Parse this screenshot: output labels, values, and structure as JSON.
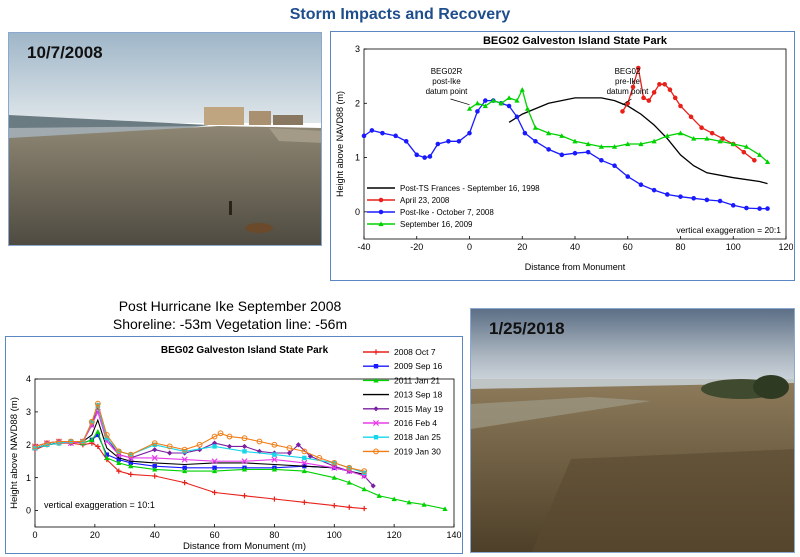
{
  "title": "Storm Impacts and Recovery",
  "photo_top": {
    "date_label": "10/7/2008"
  },
  "photo_bottom": {
    "date_label": "1/25/2018"
  },
  "caption": {
    "line1": "Post Hurricane Ike September 2008",
    "line2": "Shoreline: -53m Vegetation line: -56m"
  },
  "chart_data": [
    {
      "type": "line",
      "title": "BEG02 Galveston Island State Park",
      "xlabel": "Distance from Monument",
      "ylabel": "Height above NAVD88 (m)",
      "xlim": [
        -40,
        120
      ],
      "ylim": [
        -0.5,
        3
      ],
      "xticks": [
        -40,
        -20,
        0,
        20,
        40,
        60,
        80,
        100,
        120
      ],
      "yticks": [
        0,
        1,
        2,
        3
      ],
      "legend_position": "lower-left",
      "note": "vertical exaggeration = 20:1",
      "annotations": [
        {
          "text": [
            "BEG02R",
            "post-Ike",
            "datum point"
          ],
          "x": 0,
          "y": 1.9
        },
        {
          "text": [
            "BEG02",
            "pre-Ike",
            "datum point"
          ],
          "x": 58,
          "y": 1.9
        }
      ],
      "series": [
        {
          "name": "Post-TS Frances - September 16, 1998",
          "color": "#000000",
          "marker": "none",
          "x": [
            15,
            20,
            30,
            40,
            50,
            55,
            60,
            65,
            70,
            75,
            80,
            85,
            90,
            100,
            110,
            113
          ],
          "y": [
            1.65,
            1.8,
            2.0,
            2.1,
            2.1,
            2.05,
            1.95,
            1.8,
            1.6,
            1.35,
            1.05,
            0.85,
            0.72,
            0.63,
            0.56,
            0.52
          ]
        },
        {
          "name": "April 23, 2008",
          "color": "#e8211b",
          "marker": "dot",
          "x": [
            58,
            60,
            62,
            64,
            66,
            68,
            70,
            72,
            74,
            76,
            78,
            80,
            84,
            88,
            92,
            96,
            100,
            104,
            108
          ],
          "y": [
            1.85,
            2.0,
            2.3,
            2.65,
            2.1,
            2.05,
            2.2,
            2.35,
            2.35,
            2.25,
            2.1,
            1.95,
            1.75,
            1.55,
            1.45,
            1.35,
            1.25,
            1.1,
            0.95
          ]
        },
        {
          "name": "Post-Ike - October 7, 2008",
          "color": "#1a1aff",
          "marker": "dot",
          "x": [
            -40,
            -37,
            -33,
            -28,
            -24,
            -20,
            -17,
            -15,
            -12,
            -8,
            -4,
            0,
            3,
            6,
            9,
            12,
            15,
            18,
            21,
            25,
            30,
            35,
            40,
            45,
            50,
            55,
            60,
            65,
            70,
            75,
            80,
            85,
            90,
            95,
            100,
            105,
            110,
            113
          ],
          "y": [
            1.4,
            1.5,
            1.45,
            1.4,
            1.3,
            1.05,
            1.0,
            1.02,
            1.25,
            1.3,
            1.3,
            1.45,
            1.85,
            2.05,
            2.05,
            2.0,
            1.95,
            1.75,
            1.45,
            1.3,
            1.15,
            1.05,
            1.08,
            1.1,
            0.95,
            0.85,
            0.65,
            0.5,
            0.4,
            0.32,
            0.28,
            0.25,
            0.22,
            0.2,
            0.12,
            0.07,
            0.06,
            0.06
          ]
        },
        {
          "name": "September 16, 2009",
          "color": "#00d200",
          "marker": "tri",
          "x": [
            0,
            3,
            6,
            9,
            12,
            15,
            18,
            20,
            22,
            25,
            30,
            35,
            40,
            45,
            50,
            55,
            60,
            65,
            70,
            75,
            80,
            85,
            90,
            95,
            100,
            105,
            110,
            113
          ],
          "y": [
            1.9,
            2.0,
            1.95,
            2.05,
            2.0,
            2.1,
            2.05,
            2.25,
            1.9,
            1.55,
            1.45,
            1.4,
            1.3,
            1.25,
            1.2,
            1.2,
            1.25,
            1.25,
            1.3,
            1.4,
            1.45,
            1.35,
            1.35,
            1.3,
            1.25,
            1.2,
            1.05,
            0.92
          ]
        }
      ]
    },
    {
      "type": "line",
      "title": "BEG02 Galveston Island State Park",
      "xlabel": "Distance from Monument (m)",
      "ylabel": "Height above NAVD88 (m)",
      "xlim": [
        0,
        140
      ],
      "ylim": [
        -0.5,
        4
      ],
      "xticks": [
        0,
        20,
        40,
        60,
        80,
        100,
        120,
        140
      ],
      "yticks": [
        0,
        1,
        2,
        3,
        4
      ],
      "legend_position": "right",
      "note": "vertical exaggeration = 10:1",
      "series": [
        {
          "name": "2008 Oct 7",
          "color": "#e8211b",
          "marker": "plus",
          "x": [
            0,
            4,
            8,
            12,
            16,
            19,
            21,
            24,
            28,
            32,
            40,
            50,
            60,
            70,
            80,
            90,
            100,
            105,
            110
          ],
          "y": [
            1.85,
            2.0,
            2.05,
            2.05,
            2.0,
            2.05,
            1.95,
            1.55,
            1.2,
            1.1,
            1.05,
            0.85,
            0.55,
            0.45,
            0.35,
            0.25,
            0.15,
            0.1,
            0.06
          ]
        },
        {
          "name": "2009 Sep 16",
          "color": "#1a1aff",
          "marker": "square",
          "x": [
            0,
            4,
            8,
            12,
            16,
            19,
            21,
            24,
            28,
            32,
            40,
            50,
            60,
            70,
            80,
            90,
            100,
            105,
            110
          ],
          "y": [
            1.9,
            2.0,
            2.05,
            2.1,
            2.05,
            2.15,
            2.3,
            1.7,
            1.55,
            1.45,
            1.35,
            1.3,
            1.3,
            1.3,
            1.3,
            1.35,
            1.3,
            1.2,
            1.1
          ]
        },
        {
          "name": "2011 Jan 21",
          "color": "#00d200",
          "marker": "tri",
          "x": [
            0,
            4,
            8,
            12,
            16,
            19,
            21,
            24,
            28,
            32,
            40,
            50,
            60,
            70,
            80,
            90,
            100,
            105,
            110,
            115,
            120,
            125,
            130,
            137
          ],
          "y": [
            1.9,
            2.0,
            2.05,
            2.1,
            2.05,
            2.15,
            2.4,
            1.6,
            1.45,
            1.35,
            1.25,
            1.2,
            1.2,
            1.25,
            1.25,
            1.2,
            1.0,
            0.85,
            0.65,
            0.45,
            0.35,
            0.25,
            0.18,
            0.05
          ]
        },
        {
          "name": "2013 Sep 18",
          "color": "#000000",
          "marker": "none",
          "x": [
            0,
            4,
            8,
            12,
            16,
            19,
            21,
            24,
            28,
            32,
            40,
            50,
            60,
            70,
            80,
            90,
            100,
            105,
            110
          ],
          "y": [
            1.9,
            2.0,
            2.05,
            2.1,
            2.1,
            2.3,
            2.75,
            1.9,
            1.6,
            1.5,
            1.45,
            1.4,
            1.45,
            1.45,
            1.4,
            1.35,
            1.3,
            1.2,
            1.1
          ]
        },
        {
          "name": "2015 May 19",
          "color": "#7b1fa2",
          "marker": "diamond",
          "x": [
            0,
            4,
            8,
            12,
            16,
            19,
            21,
            24,
            28,
            32,
            40,
            45,
            50,
            55,
            60,
            65,
            70,
            75,
            80,
            85,
            88,
            92,
            100,
            105,
            110,
            113
          ],
          "y": [
            1.95,
            2.05,
            2.1,
            2.05,
            2.1,
            2.6,
            3.15,
            2.2,
            1.7,
            1.6,
            1.85,
            1.75,
            1.75,
            1.85,
            2.05,
            1.95,
            1.95,
            1.8,
            1.75,
            1.75,
            2.0,
            1.65,
            1.35,
            1.2,
            1.05,
            0.75
          ]
        },
        {
          "name": "2016 Feb 4",
          "color": "#e83be8",
          "marker": "x",
          "x": [
            0,
            4,
            8,
            12,
            16,
            19,
            21,
            24,
            28,
            32,
            40,
            50,
            60,
            70,
            80,
            90,
            100,
            105,
            110
          ],
          "y": [
            1.95,
            2.05,
            2.1,
            2.05,
            2.1,
            2.6,
            3.0,
            2.1,
            1.7,
            1.6,
            1.6,
            1.55,
            1.5,
            1.5,
            1.55,
            1.45,
            1.3,
            1.2,
            1.05
          ]
        },
        {
          "name": "2018 Jan 25",
          "color": "#16d6e8",
          "marker": "square",
          "x": [
            0,
            4,
            8,
            12,
            16,
            19,
            21,
            24,
            28,
            32,
            40,
            50,
            60,
            70,
            80,
            90,
            100,
            105,
            110
          ],
          "y": [
            1.9,
            2.0,
            2.05,
            2.1,
            2.1,
            2.7,
            3.2,
            2.2,
            1.8,
            1.7,
            2.0,
            1.8,
            1.95,
            1.8,
            1.7,
            1.6,
            1.45,
            1.3,
            1.15
          ]
        },
        {
          "name": "2019 Jan 30",
          "color": "#f07d16",
          "marker": "circle",
          "x": [
            0,
            4,
            8,
            12,
            16,
            19,
            21,
            24,
            28,
            32,
            40,
            45,
            50,
            55,
            60,
            62,
            65,
            70,
            75,
            80,
            85,
            90,
            95,
            100,
            105,
            110
          ],
          "y": [
            1.95,
            2.05,
            2.1,
            2.1,
            2.1,
            2.7,
            3.25,
            2.3,
            1.8,
            1.7,
            2.05,
            1.95,
            1.85,
            2.0,
            2.25,
            2.35,
            2.25,
            2.2,
            2.1,
            2.0,
            1.9,
            1.8,
            1.6,
            1.45,
            1.3,
            1.2
          ]
        }
      ]
    }
  ]
}
